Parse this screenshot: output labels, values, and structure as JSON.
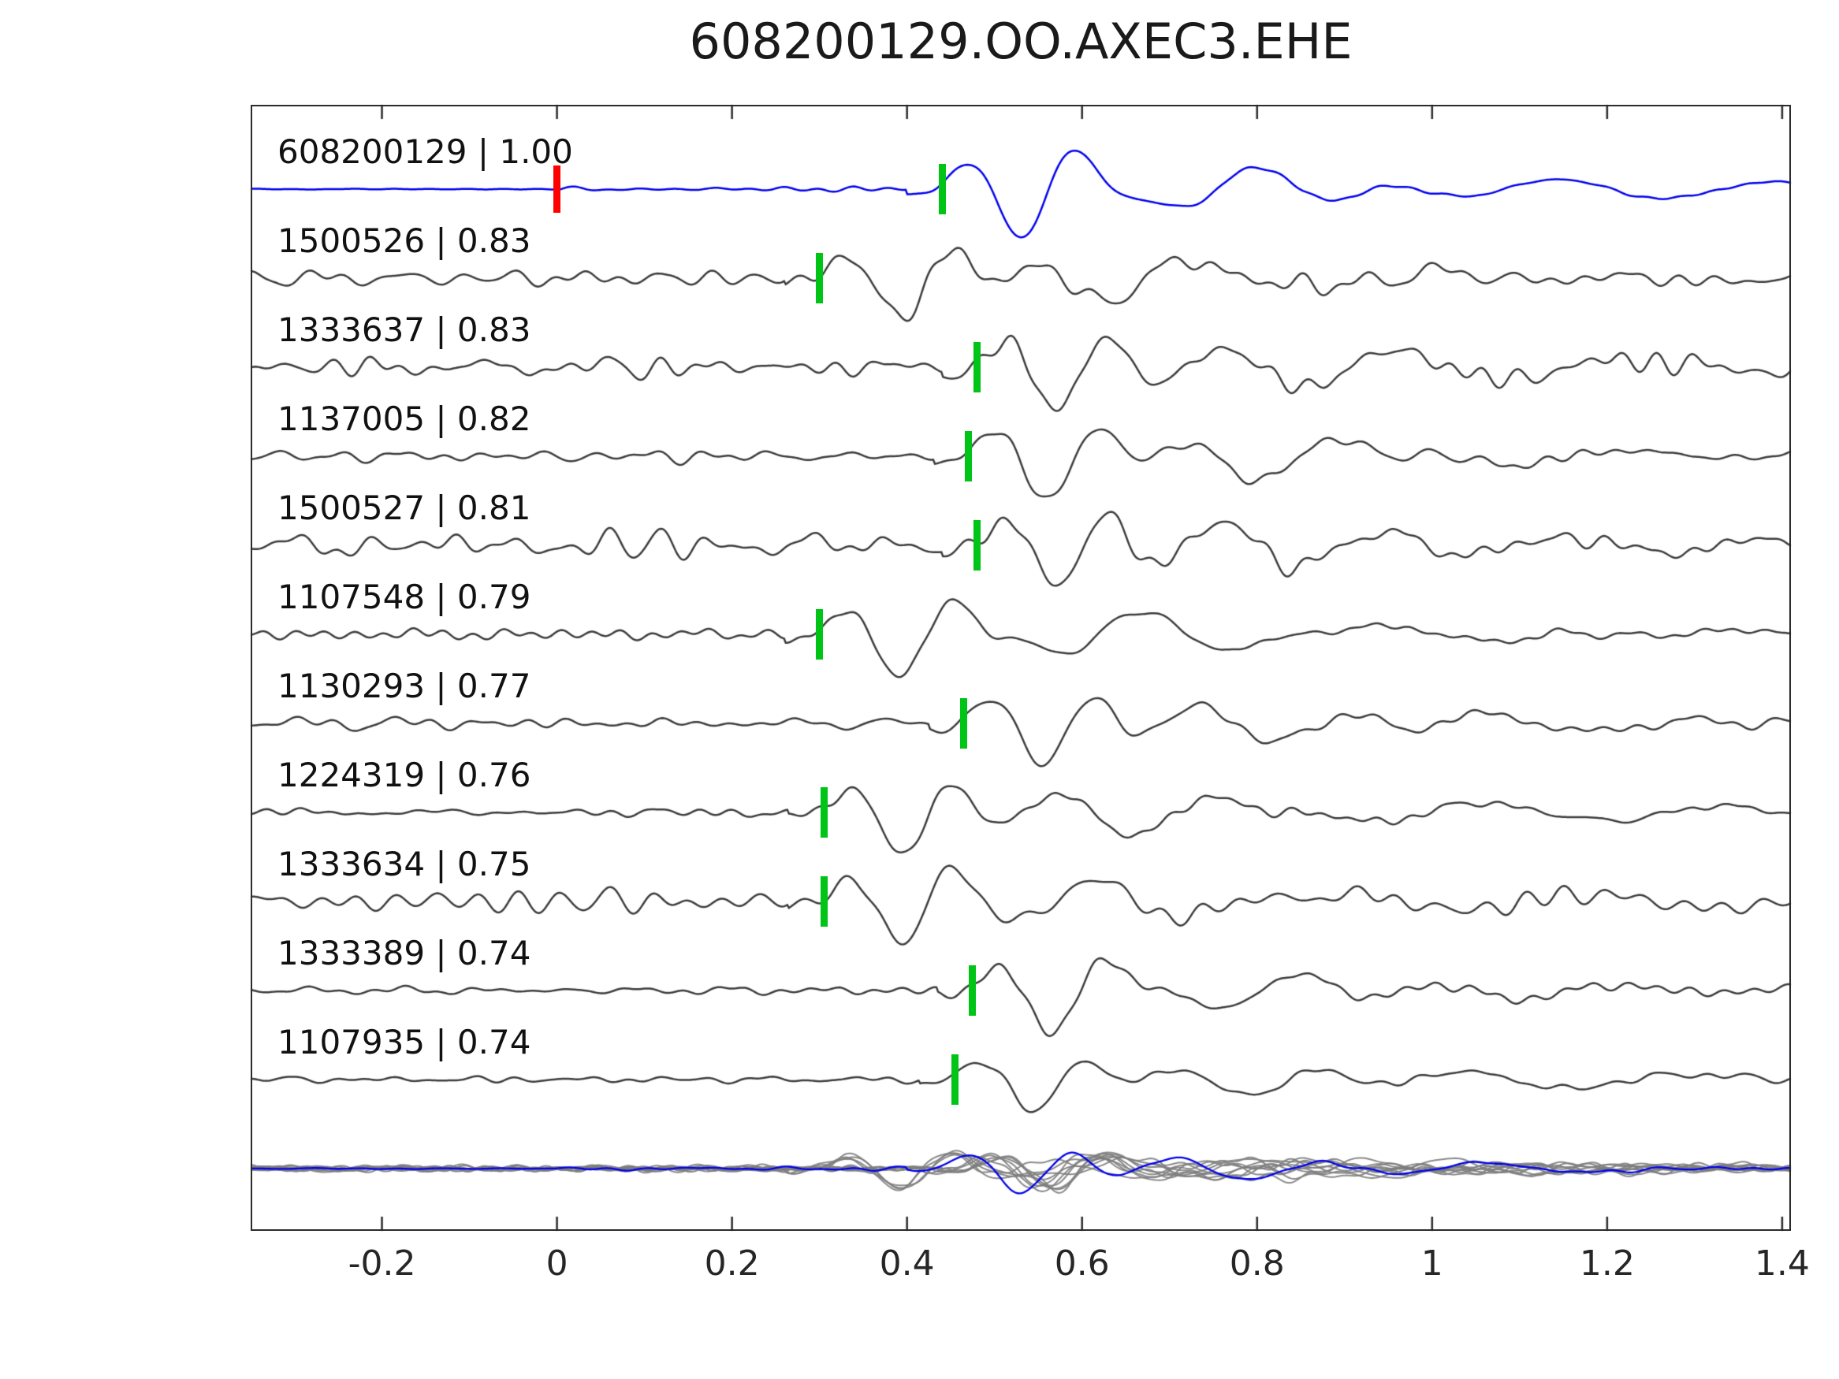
{
  "title": "608200129.OO.AXEC3.EHE",
  "chart_data": {
    "type": "line",
    "title": "608200129.OO.AXEC3.EHE",
    "xlabel": "",
    "ylabel": "",
    "xlim": [
      -0.35,
      1.41
    ],
    "x_ticks": [
      -0.2,
      0,
      0.2,
      0.4,
      0.6,
      0.8,
      1,
      1.2,
      1.4
    ],
    "x_tick_labels": [
      "-0.2",
      "0",
      "0.2",
      "0.4",
      "0.6",
      "0.8",
      "1",
      "1.2",
      "1.4"
    ],
    "grid": false,
    "legend": "none",
    "template_color": "#0000ee",
    "trace_color": "#3c3c3c",
    "overlay_trace_color": "#808080",
    "pick_marker_color": "#00c416",
    "reference_marker_color": "#ff0000",
    "traces": [
      {
        "label": "608200129 | 1.00",
        "id": "608200129",
        "correlation": 1.0,
        "pick_time": 0.44,
        "reference_time": 0.0,
        "is_template": true
      },
      {
        "label": "1500526 | 0.83",
        "id": "1500526",
        "correlation": 0.83,
        "pick_time": 0.3
      },
      {
        "label": "1333637 | 0.83",
        "id": "1333637",
        "correlation": 0.83,
        "pick_time": 0.48
      },
      {
        "label": "1137005 | 0.82",
        "id": "1137005",
        "correlation": 0.82,
        "pick_time": 0.47
      },
      {
        "label": "1500527 | 0.81",
        "id": "1500527",
        "correlation": 0.81,
        "pick_time": 0.48
      },
      {
        "label": "1107548 | 0.79",
        "id": "1107548",
        "correlation": 0.79,
        "pick_time": 0.3
      },
      {
        "label": "1130293 | 0.77",
        "id": "1130293",
        "correlation": 0.77,
        "pick_time": 0.465
      },
      {
        "label": "1224319 | 0.76",
        "id": "1224319",
        "correlation": 0.76,
        "pick_time": 0.305
      },
      {
        "label": "1333634 | 0.75",
        "id": "1333634",
        "correlation": 0.75,
        "pick_time": 0.305
      },
      {
        "label": "1333389 | 0.74",
        "id": "1333389",
        "correlation": 0.74,
        "pick_time": 0.475
      },
      {
        "label": "1107935 | 0.74",
        "id": "1107935",
        "correlation": 0.74,
        "pick_time": 0.455
      }
    ],
    "overlay_row": {
      "description": "all detected traces overlaid in gray with the blue template on top",
      "includes_template": true
    }
  }
}
